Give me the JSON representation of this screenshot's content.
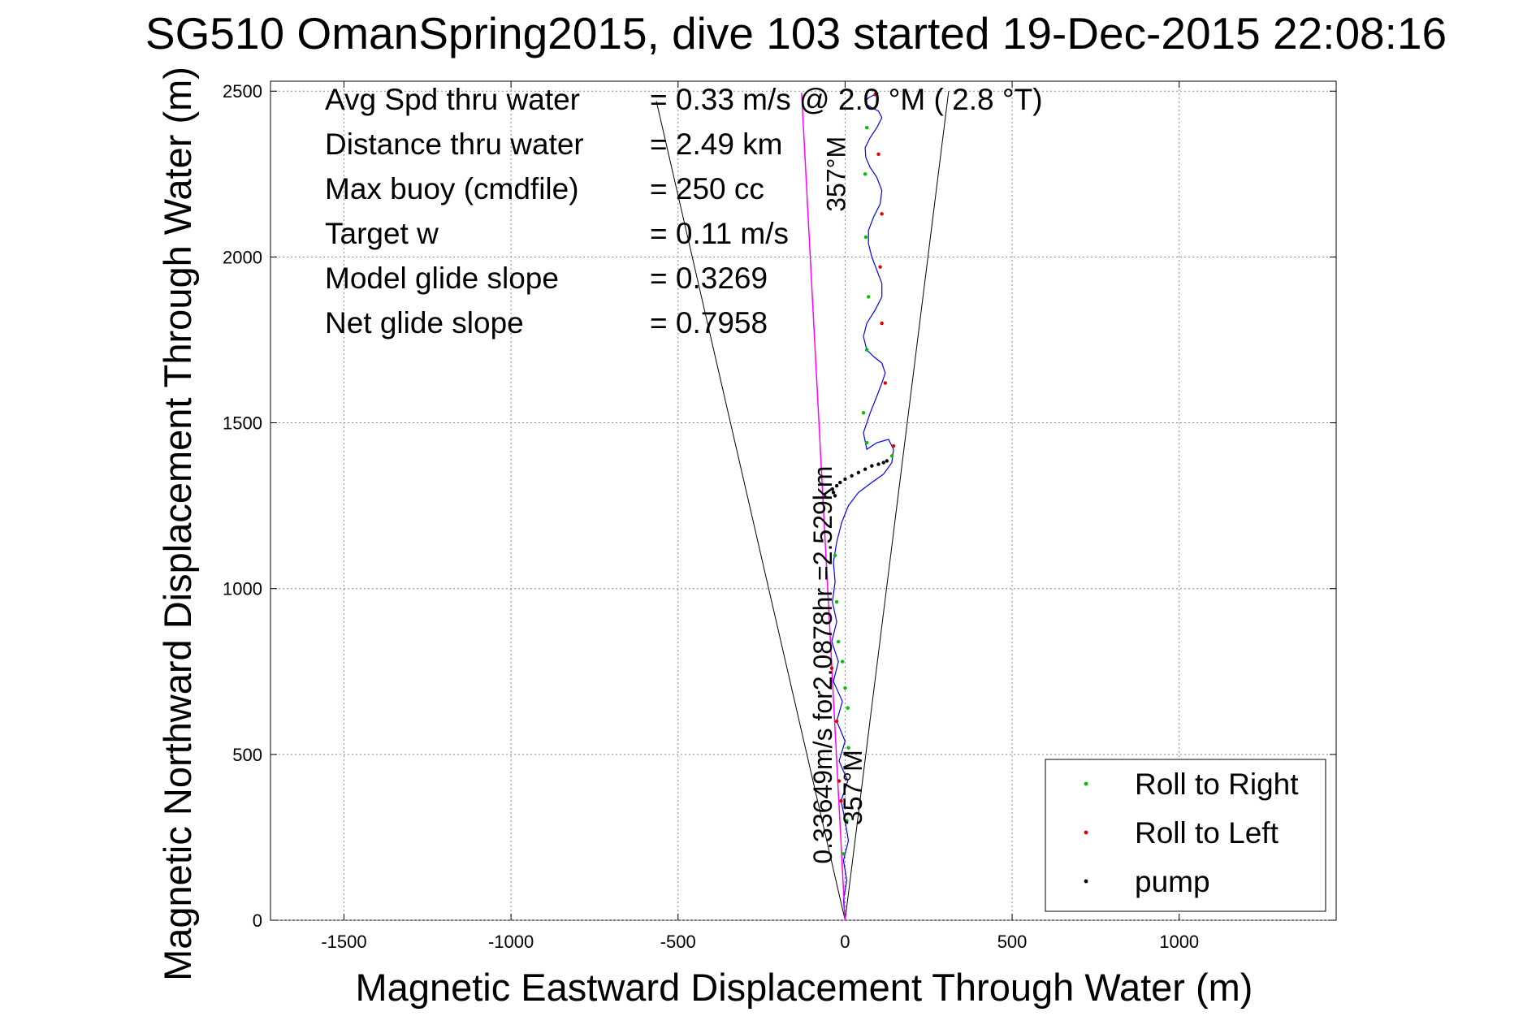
{
  "chart_data": {
    "type": "line",
    "title": "SG510 OmanSpring2015, dive 103 started 19-Dec-2015 22:08:16",
    "xlabel": "Magnetic Eastward Displacement Through Water (m)",
    "ylabel": "Magnetic Northward Displacement Through Water (m)",
    "xlim": [
      -1720,
      1470
    ],
    "ylim": [
      0,
      2530
    ],
    "xticks": [
      -1500,
      -1000,
      -500,
      0,
      500,
      1000
    ],
    "yticks": [
      0,
      500,
      1000,
      1500,
      2000,
      2500
    ],
    "grid": true,
    "legend_position": "bottom-right",
    "stats": [
      {
        "label": "Avg Spd thru water",
        "value": "=  0.33 m/s @   2.0 °M (  2.8 °T)"
      },
      {
        "label": "Distance thru water",
        "value": "=  2.49 km"
      },
      {
        "label": "Max buoy (cmdfile)",
        "value": "= 250 cc"
      },
      {
        "label": "Target w",
        "value": "= 0.11 m/s"
      },
      {
        "label": "Model glide slope",
        "value": "= 0.3269"
      },
      {
        "label": "Net glide slope",
        "value": "= 0.7958"
      }
    ],
    "annotations": [
      {
        "text": "357°M",
        "x": 0,
        "y": 2250,
        "rotation": -90
      },
      {
        "text": "0.33649m/s for2.0878hr =2.529km",
        "x": -40,
        "y": 770,
        "rotation": -90
      },
      {
        "text": "357°M",
        "x": 50,
        "y": 400,
        "rotation": -90
      }
    ],
    "cone_lines": [
      {
        "x": [
          0,
          -565
        ],
        "y": [
          0,
          2470
        ]
      },
      {
        "x": [
          0,
          310
        ],
        "y": [
          0,
          2500
        ]
      }
    ],
    "series": [
      {
        "kind": "track",
        "color": "#0000ff",
        "x": [
          0,
          -5,
          5,
          -5,
          10,
          0,
          -12,
          8,
          -18,
          0,
          -25,
          -8,
          -35,
          -20,
          -40,
          -25,
          -38,
          -30,
          -35,
          -25,
          -10,
          10,
          40,
          80,
          115,
          140,
          145,
          130,
          95,
          65,
          55,
          75,
          95,
          110,
          120,
          110,
          85,
          65,
          55,
          65,
          90,
          110,
          110,
          95,
          80,
          70,
          70,
          85,
          105,
          110,
          95,
          75,
          62,
          60,
          75,
          95,
          110,
          100,
          80,
          65,
          60,
          70,
          90,
          100
        ],
        "y": [
          0,
          60,
          120,
          180,
          240,
          300,
          360,
          420,
          480,
          540,
          600,
          660,
          720,
          780,
          840,
          900,
          960,
          1020,
          1080,
          1140,
          1200,
          1250,
          1290,
          1320,
          1345,
          1380,
          1420,
          1450,
          1440,
          1420,
          1470,
          1530,
          1580,
          1620,
          1650,
          1680,
          1700,
          1720,
          1760,
          1800,
          1840,
          1880,
          1920,
          1960,
          2000,
          2040,
          2080,
          2120,
          2160,
          2200,
          2240,
          2270,
          2300,
          2330,
          2360,
          2390,
          2420,
          2440,
          2450,
          2460,
          2470,
          2480,
          2490,
          2495
        ]
      },
      {
        "kind": "net",
        "color": "#ff00ff",
        "x": [
          0,
          -130
        ],
        "y": [
          0,
          2495
        ]
      }
    ],
    "marker_series": [
      {
        "name": "Roll to Right",
        "color": "#00c000",
        "x": [
          -5,
          5,
          10,
          8,
          0,
          -8,
          -20,
          -25,
          -30,
          140,
          65,
          55,
          65,
          70,
          62,
          60,
          65
        ],
        "y": [
          200,
          300,
          520,
          640,
          700,
          780,
          840,
          960,
          1100,
          1400,
          1440,
          1530,
          1720,
          1880,
          2060,
          2250,
          2390
        ]
      },
      {
        "name": "Roll to Left",
        "color": "#e00000",
        "x": [
          -18,
          -25,
          -12,
          -40,
          145,
          120,
          110,
          105,
          110,
          100,
          90
        ],
        "y": [
          420,
          600,
          360,
          760,
          1430,
          1620,
          1800,
          1970,
          2130,
          2310,
          2490
        ]
      },
      {
        "name": "pump",
        "color": "#000000",
        "x": [
          -30,
          -35,
          -38,
          -25,
          -15,
          0,
          20,
          40,
          60,
          80,
          100,
          115,
          125
        ],
        "y": [
          1280,
          1290,
          1300,
          1310,
          1320,
          1330,
          1340,
          1350,
          1360,
          1370,
          1375,
          1380,
          1385
        ]
      }
    ]
  }
}
